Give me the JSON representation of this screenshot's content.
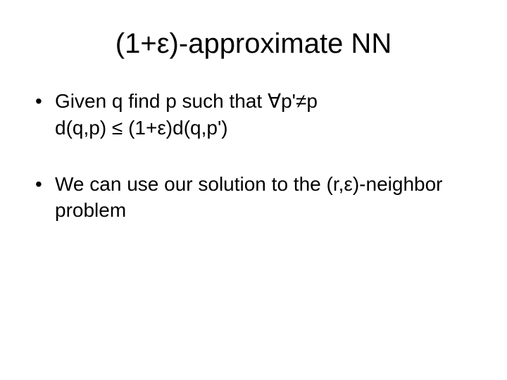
{
  "title_fontsize": 40,
  "body_fontsize": 28,
  "background_color": "#ffffff",
  "text_color": "#000000",
  "font_family": "Comic Sans MS",
  "slide": {
    "title": "(1+ε)-approximate NN",
    "bullets": [
      {
        "line1": "Given q find p such that ∀p'≠p",
        "line2": "d(q,p) ≤ (1+ε)d(q,p')"
      },
      {
        "line1": "We can use our solution to the (r,ε)-neighbor problem"
      }
    ]
  }
}
